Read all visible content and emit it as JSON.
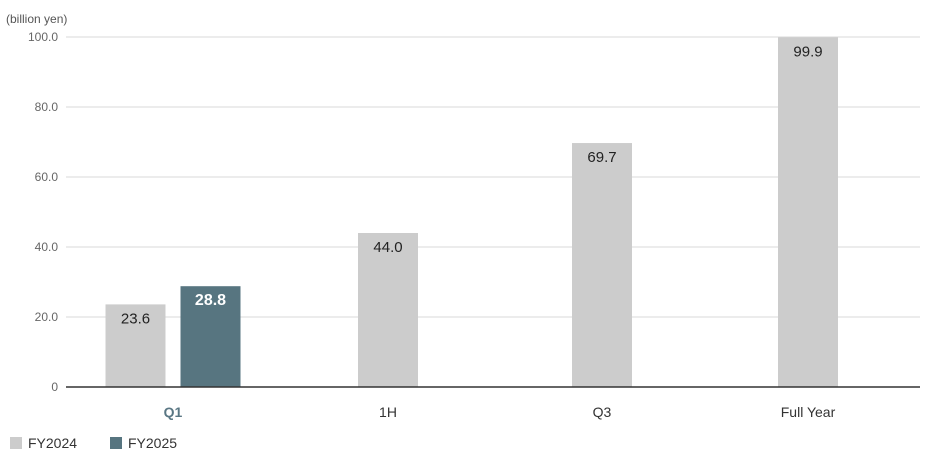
{
  "chart_data": {
    "type": "bar",
    "unit_label": "(billion yen)",
    "categories": [
      "Q1",
      "1H",
      "Q3",
      "Full Year"
    ],
    "highlight_category": "Q1",
    "series": [
      {
        "name": "FY2024",
        "color": "#cccccc",
        "label_style": "dark-text",
        "values": [
          23.6,
          44.0,
          69.7,
          99.9
        ],
        "value_labels": [
          "23.6",
          "44.0",
          "69.7",
          "99.9"
        ]
      },
      {
        "name": "FY2025",
        "color": "#577580",
        "label_style": "light-text",
        "values": [
          28.8,
          null,
          null,
          null
        ],
        "value_labels": [
          "28.8",
          null,
          null,
          null
        ]
      }
    ],
    "ylim": [
      0,
      100
    ],
    "yticks": [
      0,
      20,
      40,
      60,
      80,
      100
    ],
    "ytick_labels": [
      "0",
      "20.0",
      "40.0",
      "60.0",
      "80.0",
      "100.0"
    ],
    "grid": true,
    "legend_position": "bottom-left",
    "title": "",
    "xlabel": "",
    "ylabel": ""
  }
}
